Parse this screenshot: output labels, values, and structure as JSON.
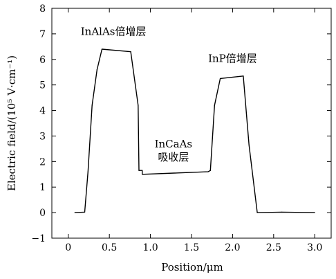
{
  "chart_data": {
    "type": "line",
    "xlabel": "Position/μm",
    "ylabel": "Electric field/(10⁵ V·cm⁻¹)",
    "xlim": [
      -0.2,
      3.2
    ],
    "ylim": [
      -1,
      8
    ],
    "xticks": [
      0,
      0.5,
      1.0,
      1.5,
      2.0,
      2.5,
      3.0
    ],
    "xtick_labels": [
      "0",
      "0.5",
      "1.0",
      "1.5",
      "2.0",
      "2.5",
      "3.0"
    ],
    "yticks": [
      -1,
      0,
      1,
      2,
      3,
      4,
      5,
      6,
      7,
      8
    ],
    "ytick_labels": [
      "−1",
      "0",
      "1",
      "2",
      "3",
      "4",
      "5",
      "6",
      "7",
      "8"
    ],
    "grid": false,
    "series": [
      {
        "x": [
          0.08,
          0.2,
          0.24,
          0.29,
          0.35,
          0.41,
          0.76,
          0.85,
          0.86,
          0.9,
          0.9,
          1.7,
          1.73,
          1.78,
          1.85,
          2.13,
          2.2,
          2.3,
          2.6,
          3.0
        ],
        "y": [
          0.0,
          0.02,
          1.6,
          4.2,
          5.6,
          6.4,
          6.3,
          4.2,
          1.65,
          1.65,
          1.5,
          1.6,
          1.65,
          4.2,
          5.25,
          5.35,
          2.65,
          0.0,
          0.02,
          0.0
        ]
      }
    ],
    "annotations": [
      {
        "lines": [
          "InAlAs倍增层"
        ],
        "x": 0.55,
        "y": 6.95
      },
      {
        "lines": [
          "InP倍增层"
        ],
        "x": 2.0,
        "y": 5.9
      },
      {
        "lines": [
          "InCaAs",
          "吸收层"
        ],
        "x": 1.28,
        "y": 2.55
      }
    ],
    "colors": {
      "line": "#000000",
      "axes": "#000000",
      "background": "#ffffff"
    }
  }
}
